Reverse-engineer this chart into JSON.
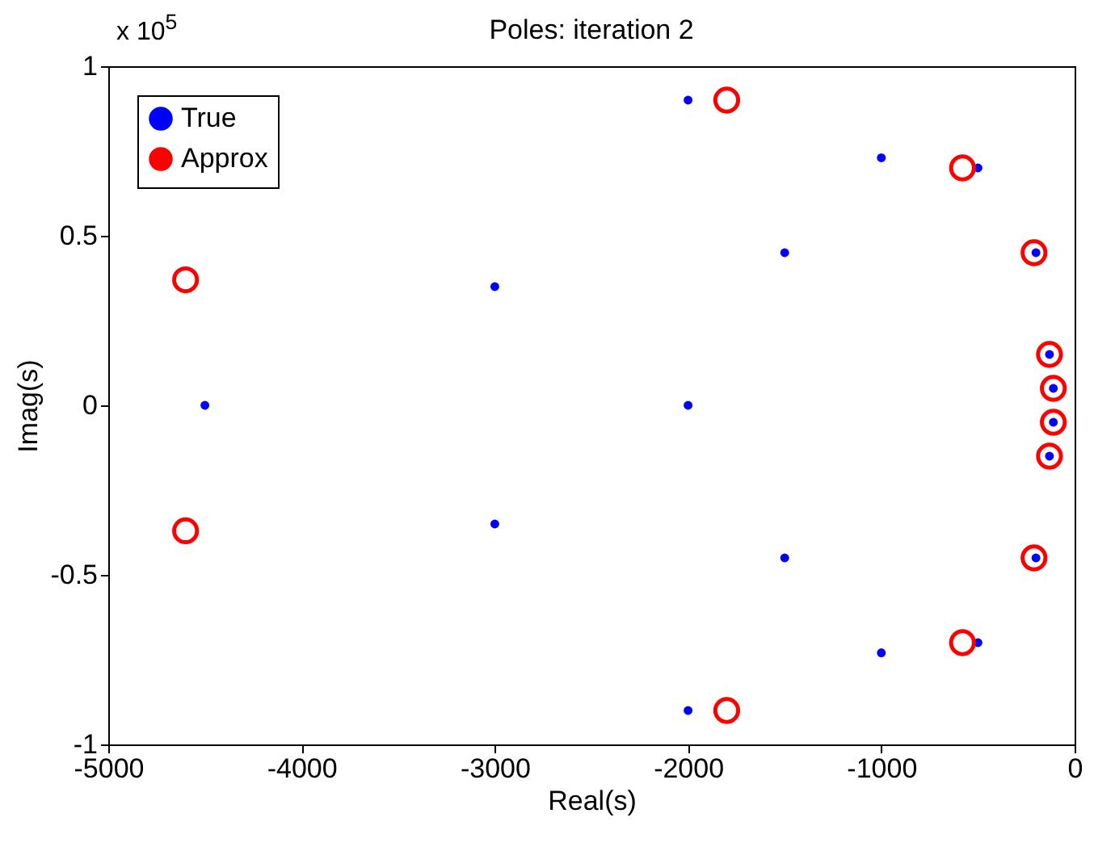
{
  "chart_data": {
    "type": "scatter",
    "title": "Poles: iteration 2",
    "xlabel": "Real(s)",
    "ylabel": "Imag(s)",
    "annotations": [
      "x 10$^{5}$"
    ],
    "xlim": [
      -5000,
      0
    ],
    "xticks": [
      -5000,
      -4000,
      -3000,
      -2000,
      -1000,
      0
    ],
    "ylim": [
      -1,
      1
    ],
    "yticks": [
      -1,
      -0.5,
      0,
      0.5,
      1
    ],
    "grid": false,
    "legend": "top left",
    "marker": "circle",
    "series": [
      {
        "name": "True",
        "color": "#0000ff",
        "x": [
          -2000,
          -1000,
          -500,
          -1500,
          -3000,
          -200,
          -130,
          -110,
          -4500,
          -2000,
          -110,
          -130,
          -200,
          -3000,
          -1500,
          -500,
          -1000,
          -2000
        ],
        "values": [
          0.9,
          0.73,
          0.7,
          0.45,
          0.35,
          0.45,
          0.15,
          0.05,
          0,
          0,
          -0.05,
          -0.15,
          -0.45,
          -0.35,
          -0.45,
          -0.7,
          -0.73,
          -0.9
        ]
      },
      {
        "name": "Approx",
        "color": "#ff0000",
        "x": [
          -1800,
          -580,
          -210,
          -130,
          -110,
          -4600,
          -4600,
          -110,
          -130,
          -210,
          -580,
          -1800
        ],
        "values": [
          0.9,
          0.7,
          0.45,
          0.15,
          0.05,
          0.37,
          -0.37,
          -0.05,
          -0.15,
          -0.45,
          -0.7,
          -0.9
        ]
      }
    ]
  }
}
